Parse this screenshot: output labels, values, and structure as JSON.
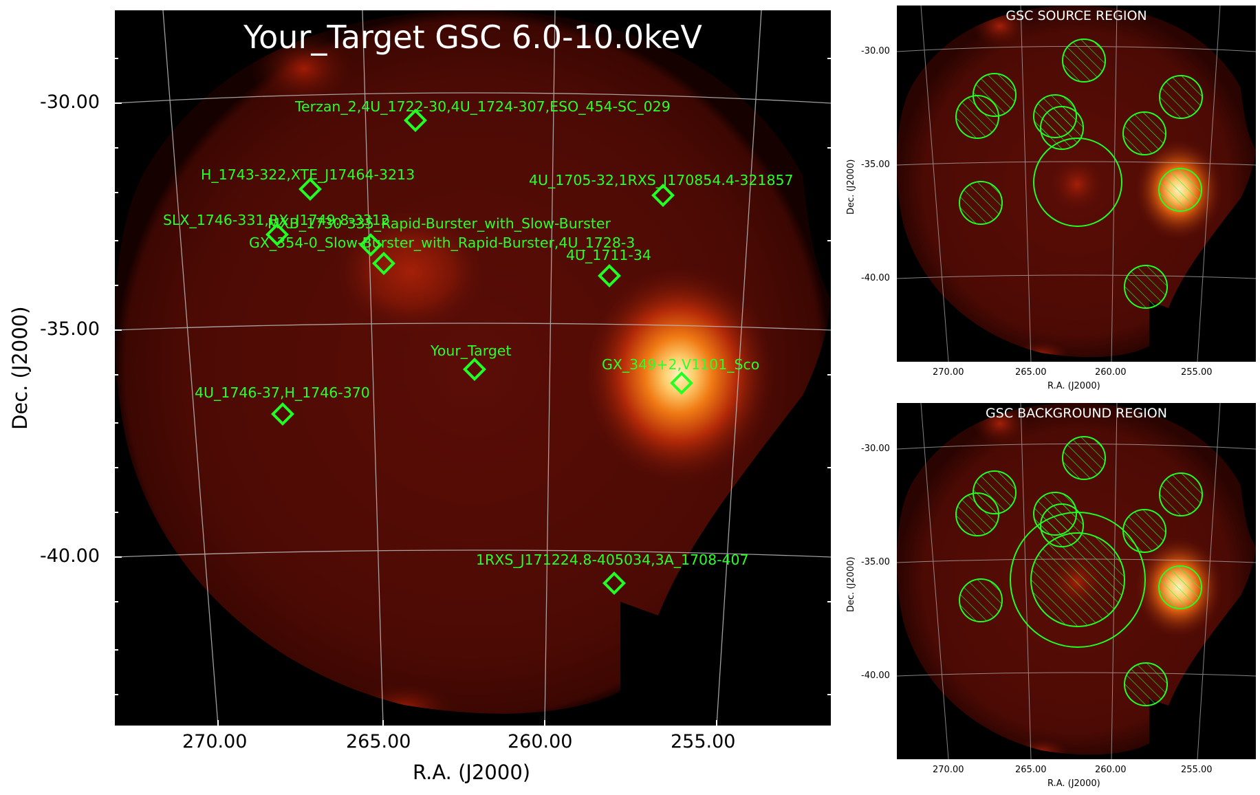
{
  "main": {
    "title": "Your_Target GSC 6.0-10.0keV",
    "xlabel": "R.A. (J2000)",
    "ylabel": "Dec. (J2000)",
    "x_ticks": [
      "270.00",
      "265.00",
      "260.00",
      "255.00"
    ],
    "y_ticks": [
      "-30.00",
      "-35.00",
      "-40.00"
    ],
    "sources": [
      {
        "label": "Terzan_2,4U_1722-30,4U_1724-307,ESO_454-SC_029"
      },
      {
        "label": "H_1743-322,XTE_J17464-3213"
      },
      {
        "label": "4U_1705-32,1RXS_J170854.4-321857"
      },
      {
        "label": "SLX_1746-331,RX_J1749.8-3312"
      },
      {
        "label": "MXB_1730-335_Rapid-Burster_with_Slow-Burster"
      },
      {
        "label": "GX_354-0_Slow-Burster_with_Rapid-Burster,4U_1728-3"
      },
      {
        "label": "4U_1711-34"
      },
      {
        "label": "Your_Target"
      },
      {
        "label": "GX_349+2,V1101_Sco"
      },
      {
        "label": "4U_1746-37,H_1746-370"
      },
      {
        "label": "1RXS_J171224.8-405034,3A_1708-407"
      }
    ]
  },
  "source_region": {
    "title": "GSC SOURCE REGION",
    "xlabel": "R.A. (J2000)",
    "ylabel": "Dec. (J2000)",
    "x_ticks": [
      "270.00",
      "265.00",
      "260.00",
      "255.00"
    ],
    "y_ticks": [
      "-30.00",
      "-35.00",
      "-40.00"
    ]
  },
  "background_region": {
    "title": "GSC BACKGROUND REGION",
    "xlabel": "R.A. (J2000)",
    "ylabel": "Dec. (J2000)",
    "x_ticks": [
      "270.00",
      "265.00",
      "260.00",
      "255.00"
    ],
    "y_ticks": [
      "-30.00",
      "-35.00",
      "-40.00"
    ]
  },
  "colors": {
    "marker": "#22ff22",
    "label": "#2bff2b",
    "grid": "#bbbbbb",
    "background": "#000000",
    "glow_core": "#fff4c0"
  }
}
